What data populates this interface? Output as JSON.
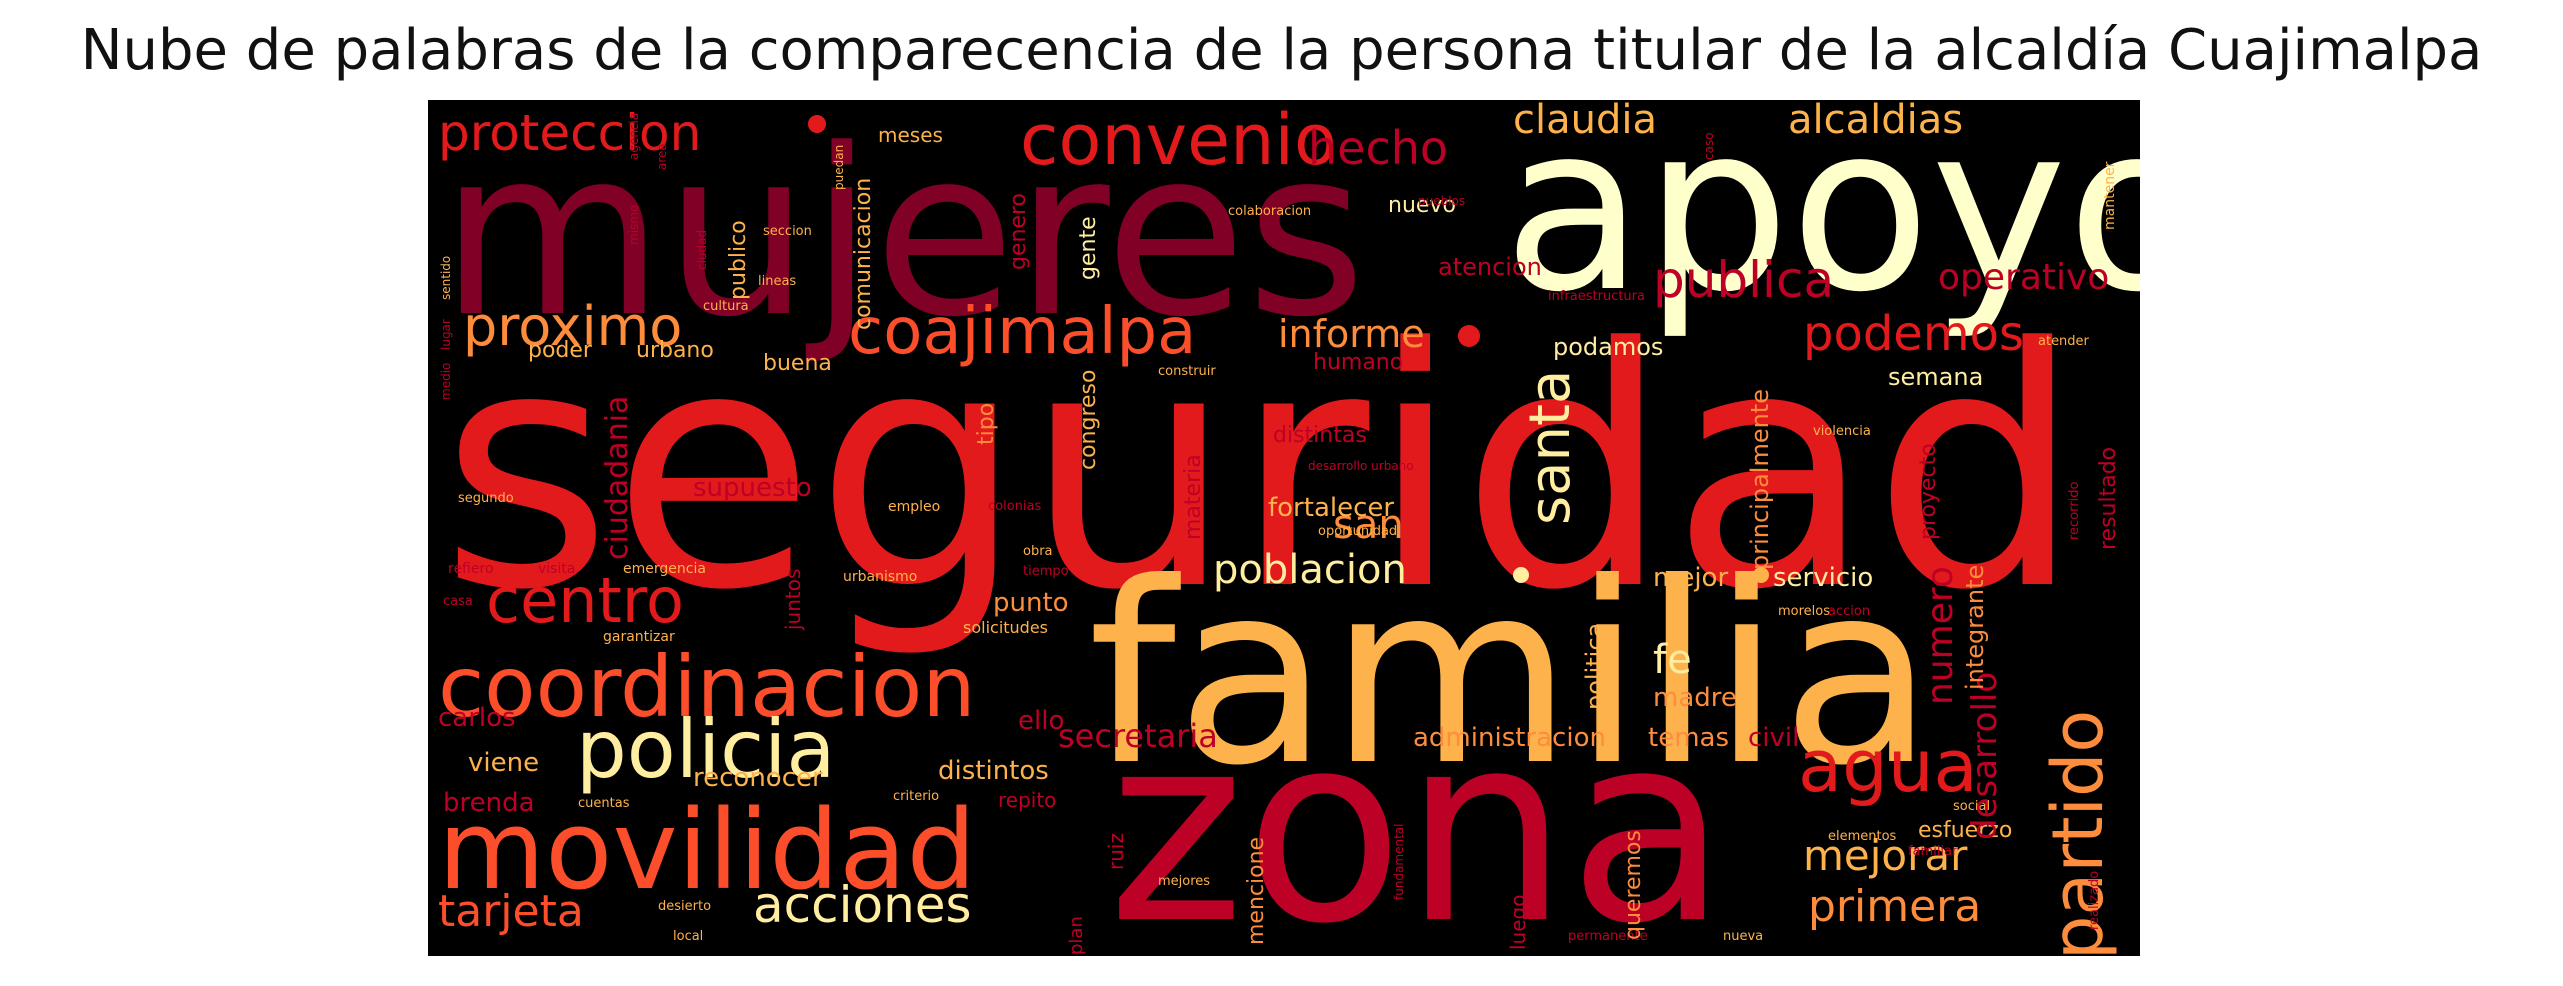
{
  "title": "Nube de palabras de la comparecencia de la persona titular de la alcaldía Cuajimalpa",
  "colors": {
    "background": "#000000",
    "palette": [
      "#e31a1c",
      "#bd0026",
      "#800026",
      "#fc4e2a",
      "#fd8d3c",
      "#feb24c",
      "#ffeda0",
      "#ffffcc"
    ]
  },
  "words": [
    {
      "text": "seguridad",
      "color": "#e31a1c"
    },
    {
      "text": "mujeres",
      "color": "#800026"
    },
    {
      "text": "apoyo",
      "color": "#ffffcc"
    },
    {
      "text": "familia",
      "color": "#feb24c"
    },
    {
      "text": "zona",
      "color": "#bd0026"
    },
    {
      "text": "movilidad",
      "color": "#fc4e2a"
    },
    {
      "text": "coordinacion",
      "color": "#fc4e2a"
    },
    {
      "text": "convenio",
      "color": "#e31a1c"
    },
    {
      "text": "policia",
      "color": "#ffeda0"
    },
    {
      "text": "coajimalpa",
      "color": "#fc4e2a"
    },
    {
      "text": "proteccion",
      "color": "#e31a1c"
    },
    {
      "text": "partido",
      "color": "#fd8d3c"
    },
    {
      "text": "agua",
      "color": "#e31a1c"
    },
    {
      "text": "centro",
      "color": "#e31a1c"
    },
    {
      "text": "proximo",
      "color": "#fd8d3c"
    },
    {
      "text": "santa",
      "color": "#ffeda0"
    },
    {
      "text": "podemos",
      "color": "#e31a1c"
    },
    {
      "text": "claudia",
      "color": "#feb24c"
    },
    {
      "text": "alcaldias",
      "color": "#feb24c"
    },
    {
      "text": "publica",
      "color": "#bd0026"
    },
    {
      "text": "hecho",
      "color": "#bd0026"
    },
    {
      "text": "informe",
      "color": "#fd8d3c"
    },
    {
      "text": "poblacion",
      "color": "#ffeda0"
    },
    {
      "text": "acciones",
      "color": "#ffeda0"
    },
    {
      "text": "tarjeta",
      "color": "#fc4e2a"
    },
    {
      "text": "primera",
      "color": "#fd8d3c"
    },
    {
      "text": "mejorar",
      "color": "#feb24c"
    },
    {
      "text": "desarrollo",
      "color": "#bd0026"
    },
    {
      "text": "operativo",
      "color": "#bd0026"
    },
    {
      "text": "numero",
      "color": "#bd0026"
    },
    {
      "text": "san",
      "color": "#fd8d3c"
    },
    {
      "text": "secretaria",
      "color": "#bd0026"
    },
    {
      "text": "ciudadania",
      "color": "#bd0026"
    },
    {
      "text": "fortalecer",
      "color": "#feb24c"
    },
    {
      "text": "supuesto",
      "color": "#bd0026"
    },
    {
      "text": "fe",
      "color": "#ffeda0"
    },
    {
      "text": "administracion",
      "color": "#fd8d3c"
    },
    {
      "text": "temas",
      "color": "#fd8d3c"
    },
    {
      "text": "civil",
      "color": "#bd0026"
    },
    {
      "text": "distintos",
      "color": "#feb24c"
    },
    {
      "text": "reconocer",
      "color": "#feb24c"
    },
    {
      "text": "brenda",
      "color": "#bd0026"
    },
    {
      "text": "carlos",
      "color": "#bd0026"
    },
    {
      "text": "viene",
      "color": "#feb24c"
    },
    {
      "text": "ello",
      "color": "#bd0026"
    },
    {
      "text": "punto",
      "color": "#fd8d3c"
    },
    {
      "text": "mejor",
      "color": "#feb24c"
    },
    {
      "text": "servicio",
      "color": "#ffeda0"
    },
    {
      "text": "madre",
      "color": "#fd8d3c"
    },
    {
      "text": "politica",
      "color": "#feb24c"
    },
    {
      "text": "integrante",
      "color": "#fd8d3c"
    },
    {
      "text": "principalmente",
      "color": "#fd8d3c"
    },
    {
      "text": "proyecto",
      "color": "#bd0026"
    },
    {
      "text": "resultado",
      "color": "#bd0026"
    },
    {
      "text": "semana",
      "color": "#ffeda0"
    },
    {
      "text": "podamos",
      "color": "#ffeda0"
    },
    {
      "text": "atencion",
      "color": "#bd0026"
    },
    {
      "text": "nuevo",
      "color": "#ffeda0"
    },
    {
      "text": "gente",
      "color": "#ffeda0"
    },
    {
      "text": "genero",
      "color": "#bd0026"
    },
    {
      "text": "publico",
      "color": "#feb24c"
    },
    {
      "text": "comunicacion",
      "color": "#feb24c"
    },
    {
      "text": "meses",
      "color": "#feb24c"
    },
    {
      "text": "poder",
      "color": "#feb24c"
    },
    {
      "text": "urbano",
      "color": "#feb24c"
    },
    {
      "text": "buena",
      "color": "#feb24c"
    },
    {
      "text": "humano",
      "color": "#bd0026"
    },
    {
      "text": "distintas",
      "color": "#bd0026"
    },
    {
      "text": "congreso",
      "color": "#feb24c"
    },
    {
      "text": "tipo",
      "color": "#fd8d3c"
    },
    {
      "text": "materia",
      "color": "#bd0026"
    },
    {
      "text": "juntos",
      "color": "#bd0026"
    },
    {
      "text": "repito",
      "color": "#bd0026"
    },
    {
      "text": "ruiz",
      "color": "#bd0026"
    },
    {
      "text": "mencione",
      "color": "#fd8d3c"
    },
    {
      "text": "relacion",
      "color": "#bd0026"
    },
    {
      "text": "luego",
      "color": "#bd0026"
    },
    {
      "text": "queremos",
      "color": "#fd8d3c"
    },
    {
      "text": "esfuerzo",
      "color": "#feb24c"
    },
    {
      "text": "plan",
      "color": "#bd0026"
    },
    {
      "text": "solicitudes",
      "color": "#feb24c"
    },
    {
      "text": "urbanismo",
      "color": "#feb24c"
    },
    {
      "text": "emergencia",
      "color": "#feb24c"
    },
    {
      "text": "visita",
      "color": "#bd0026"
    },
    {
      "text": "refiero",
      "color": "#bd0026"
    },
    {
      "text": "garantizar",
      "color": "#feb24c"
    },
    {
      "text": "cuentas",
      "color": "#feb24c"
    },
    {
      "text": "criterio",
      "color": "#feb24c"
    },
    {
      "text": "desierto",
      "color": "#feb24c"
    },
    {
      "text": "local",
      "color": "#feb24c"
    },
    {
      "text": "mejores",
      "color": "#feb24c"
    },
    {
      "text": "oportunidad",
      "color": "#feb24c"
    },
    {
      "text": "empleo",
      "color": "#feb24c"
    },
    {
      "text": "colonias",
      "color": "#bd0026"
    },
    {
      "text": "obra",
      "color": "#feb24c"
    },
    {
      "text": "tiempo",
      "color": "#bd0026"
    },
    {
      "text": "morelos",
      "color": "#feb24c"
    },
    {
      "text": "accion",
      "color": "#bd0026"
    },
    {
      "text": "familiar",
      "color": "#bd0026"
    },
    {
      "text": "social",
      "color": "#feb24c"
    },
    {
      "text": "elementos",
      "color": "#feb24c"
    },
    {
      "text": "fundamental",
      "color": "#bd0026"
    },
    {
      "text": "permanente",
      "color": "#bd0026"
    },
    {
      "text": "nueva",
      "color": "#feb24c"
    },
    {
      "text": "violencia",
      "color": "#feb24c"
    },
    {
      "text": "realizado",
      "color": "#bd0026"
    },
    {
      "text": "recorrido",
      "color": "#bd0026"
    },
    {
      "text": "mantener",
      "color": "#feb24c"
    },
    {
      "text": "atender",
      "color": "#feb24c"
    },
    {
      "text": "infraestructura",
      "color": "#bd0026"
    },
    {
      "text": "colaboracion",
      "color": "#feb24c"
    },
    {
      "text": "cultura",
      "color": "#feb24c"
    },
    {
      "text": "lineas",
      "color": "#feb24c"
    },
    {
      "text": "seccion",
      "color": "#feb24c"
    },
    {
      "text": "construir",
      "color": "#feb24c"
    },
    {
      "text": "ciudad",
      "color": "#bd0026"
    },
    {
      "text": "segundo",
      "color": "#feb24c"
    },
    {
      "text": "casa",
      "color": "#bd0026"
    },
    {
      "text": "medio",
      "color": "#bd0026"
    },
    {
      "text": "lugar",
      "color": "#bd0026"
    },
    {
      "text": "mismo",
      "color": "#bd0026"
    },
    {
      "text": "area",
      "color": "#bd0026"
    },
    {
      "text": "sentido",
      "color": "#feb24c"
    },
    {
      "text": "agencia",
      "color": "#bd0026"
    },
    {
      "text": "caso",
      "color": "#bd0026"
    },
    {
      "text": "pueblos",
      "color": "#bd0026"
    },
    {
      "text": "puedan",
      "color": "#feb24c"
    },
    {
      "text": "desarrollo urbano",
      "color": "#bd0026"
    }
  ]
}
